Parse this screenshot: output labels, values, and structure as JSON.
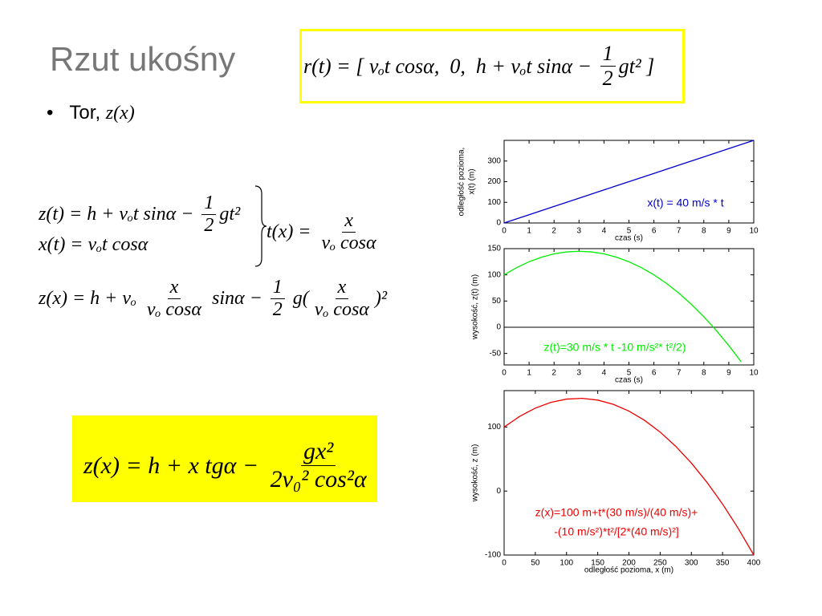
{
  "slide": {
    "title": "Rzut ukośny",
    "bullet": {
      "marker": "•",
      "text": "Tor,",
      "math": "z(x)"
    }
  },
  "formulas": [
    {
      "parts": [
        "r(t) = [ vₒt cosα,  0,  h + vₒt sinα − ",
        {
          "num": "1",
          "den": "2"
        },
        "gt² ]"
      ]
    },
    {
      "parts": [
        "z(t) = h + vₒt sinα − ",
        {
          "num": "1",
          "den": "2"
        },
        "gt²"
      ]
    },
    {
      "parts": [
        "x(t) = vₒt cosα"
      ]
    },
    {
      "parts": [
        "t(x) = ",
        {
          "num": "x",
          "den": "vₒ cosα"
        }
      ]
    },
    {
      "parts": [
        "z(x) = h + vₒ ",
        {
          "num": "x",
          "den": "vₒ cosα"
        },
        " sinα − ",
        {
          "num": "1",
          "den": "2"
        },
        " g(",
        {
          "num": "x",
          "den": "vₒ cosα"
        },
        ")²"
      ]
    },
    {
      "parts": [
        "z(x) = h + x tgα − ",
        {
          "num": "gx²",
          "den": "2v₀² cos²α"
        }
      ]
    }
  ],
  "chart_data": [
    {
      "type": "line",
      "ylabel": [
        "odległość pozioma,",
        "x(t)  (m)"
      ],
      "xlabel": "czas  (s)",
      "annotation": [
        "x(t) = 40 m/s * t"
      ],
      "x": [
        0,
        1,
        2,
        3,
        4,
        5,
        6,
        7,
        8,
        9,
        10
      ],
      "series": [
        {
          "color": "#0000cc",
          "values": [
            0,
            40,
            80,
            120,
            160,
            200,
            240,
            280,
            320,
            360,
            400
          ]
        }
      ],
      "xlim": [
        0,
        10
      ],
      "ylim": [
        0,
        400
      ],
      "xticks": [
        0,
        1,
        2,
        3,
        4,
        5,
        6,
        7,
        8,
        9,
        10
      ],
      "yticks": [
        0,
        100,
        200,
        300
      ]
    },
    {
      "type": "line",
      "ylabel": [
        "wysokość, z(t)   (m)"
      ],
      "xlabel": "czas  (s)",
      "annotation": [
        "z(t)=30 m/s * t -10 m/s²* t²/2)"
      ],
      "x": [
        0,
        0.5,
        1,
        1.5,
        2,
        2.5,
        3,
        3.5,
        4,
        4.5,
        5,
        5.5,
        6,
        6.5,
        7,
        7.5,
        8,
        8.5,
        9,
        9.5
      ],
      "series": [
        {
          "color": "#00ee00",
          "values": [
            100,
            113.75,
            125,
            133.75,
            140,
            143.75,
            145,
            143.75,
            140,
            133.75,
            125,
            113.75,
            100,
            83.75,
            65,
            43.75,
            20,
            -6.25,
            -35,
            -66.25
          ]
        }
      ],
      "xlim": [
        0,
        10
      ],
      "ylim": [
        -72,
        150
      ],
      "xticks": [
        0,
        1,
        2,
        3,
        4,
        5,
        6,
        7,
        8,
        9,
        10
      ],
      "yticks": [
        -50,
        0,
        50,
        100,
        150
      ],
      "zero_line": true
    },
    {
      "type": "line",
      "ylabel": [
        "wysokość, z   (m)"
      ],
      "xlabel": "odległość pozioma, x  (m)",
      "annotation": [
        "z(x)=100 m+t*(30 m/s)/(40 m/s)+",
        "-(10 m/s²)*t²/[2*(40 m/s)²]"
      ],
      "x": [
        0,
        25,
        50,
        75,
        100,
        125,
        150,
        175,
        200,
        225,
        250,
        275,
        300,
        325,
        350,
        375,
        400
      ],
      "series": [
        {
          "color": "#ee0000",
          "values": [
            100,
            116.8,
            129.69,
            138.67,
            143.75,
            144.92,
            142.19,
            135.55,
            125,
            110.55,
            92.19,
            69.92,
            43.75,
            13.67,
            -20.31,
            -58.2,
            -100
          ]
        }
      ],
      "xlim": [
        0,
        400
      ],
      "ylim": [
        -100,
        157
      ],
      "xticks": [
        0,
        50,
        100,
        150,
        200,
        250,
        300,
        350,
        400
      ],
      "yticks": [
        -100,
        0,
        100
      ]
    }
  ]
}
